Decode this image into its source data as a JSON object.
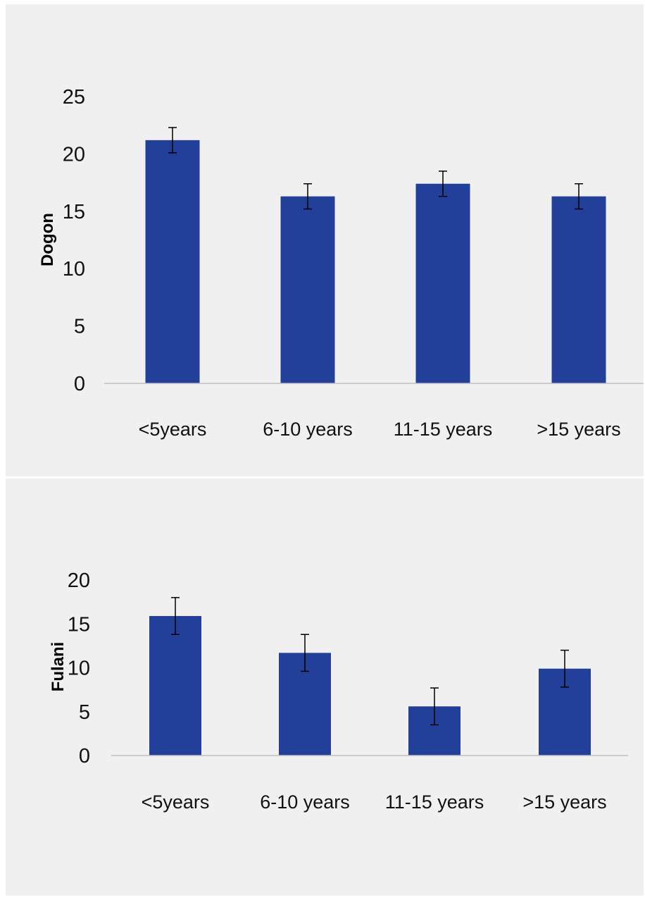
{
  "colors": {
    "bar": "#22409a",
    "axis": "#bfbfbf",
    "error": "#000000"
  },
  "chart_data": [
    {
      "type": "bar",
      "ylabel": "Dogon",
      "xlabel": "",
      "categories": [
        "<5years",
        "6-10 years",
        "11-15 years",
        ">15 years"
      ],
      "values": [
        21.2,
        16.3,
        17.4,
        16.3
      ],
      "error": [
        1.1,
        1.1,
        1.1,
        1.1
      ],
      "ylim": [
        0,
        25
      ],
      "yticks": [
        "0",
        "5",
        "10",
        "15",
        "20",
        "25"
      ],
      "grid": false,
      "legend": "none"
    },
    {
      "type": "bar",
      "ylabel": "Fulani",
      "xlabel": "",
      "categories": [
        "<5years",
        "6-10 years",
        "11-15 years",
        ">15 years"
      ],
      "values": [
        15.9,
        11.7,
        5.6,
        9.9
      ],
      "error": [
        2.1,
        2.1,
        2.1,
        2.1
      ],
      "ylim": [
        0,
        20
      ],
      "yticks": [
        "0",
        "5",
        "10",
        "15",
        "20"
      ],
      "grid": false,
      "legend": "none"
    }
  ]
}
